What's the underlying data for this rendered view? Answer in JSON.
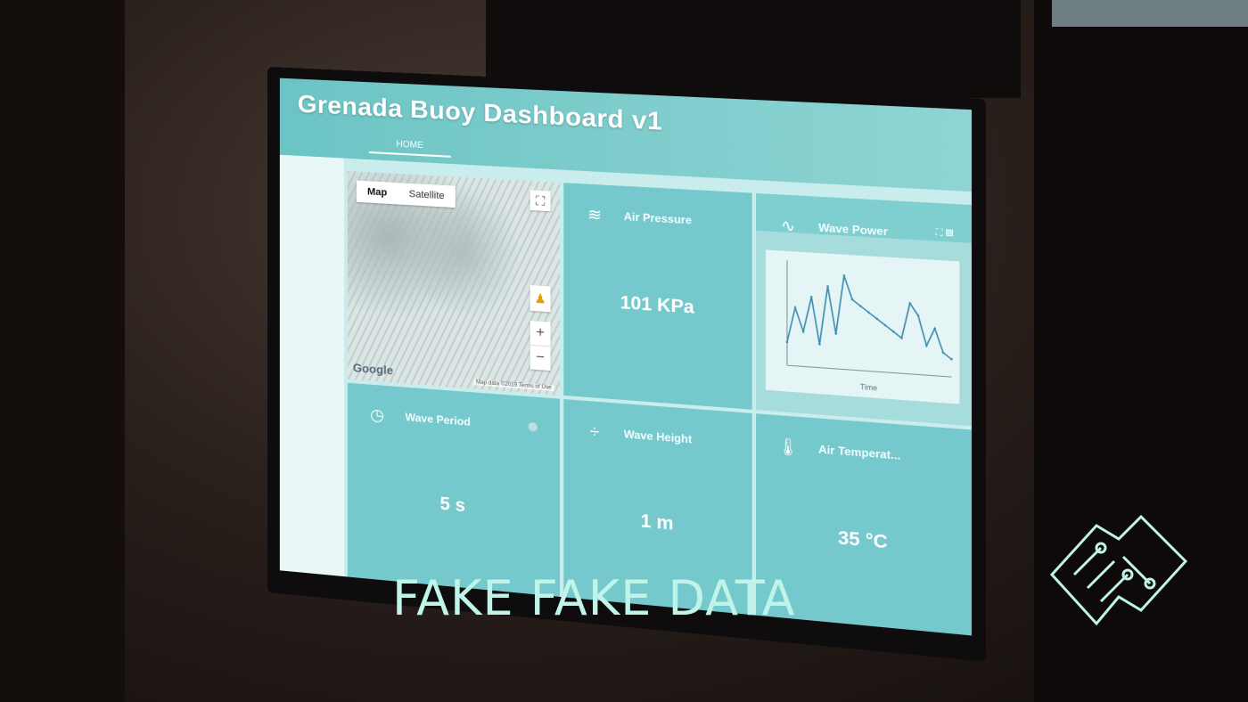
{
  "app": {
    "title": "Grenada Buoy Dashboard v1",
    "nav_home": "HOME"
  },
  "map": {
    "tabs": [
      "Map",
      "Satellite"
    ],
    "active_tab": "Map",
    "logo": "Google",
    "attribution": "Map data ©2019  Terms of Use",
    "zoom_in": "+",
    "zoom_out": "−",
    "fullscreen_icon": "fullscreen-icon",
    "pegman_icon": "pegman-icon"
  },
  "cards": {
    "air_pressure": {
      "label": "Air Pressure",
      "value": "101 KPa",
      "icon": "wind-icon"
    },
    "wave_power": {
      "label": "Wave Power",
      "icon": "sine-wave-icon"
    },
    "wave_period": {
      "label": "Wave Period",
      "value": "5 s",
      "icon": "clock-icon"
    },
    "wave_height": {
      "label": "Wave Height",
      "value": "1 m",
      "icon": "height-icon"
    },
    "air_temperature": {
      "label": "Air Temperat...",
      "value": "35 °C",
      "icon": "thermometer-icon"
    }
  },
  "chart_data": {
    "type": "line",
    "title": "",
    "xlabel": "Time",
    "ylabel": "",
    "x": [
      0,
      1,
      2,
      3,
      4,
      5,
      6,
      7,
      8,
      9,
      10,
      11,
      12,
      13,
      14,
      15,
      16,
      17,
      18,
      19,
      20
    ],
    "series": [
      {
        "values": [
          2,
          5,
          3,
          6,
          2,
          7,
          3,
          8,
          6,
          5.5,
          5,
          4.5,
          4,
          3.5,
          3,
          6,
          5,
          2.5,
          4,
          2,
          1.5
        ]
      }
    ],
    "ylim": [
      0,
      9
    ],
    "grid": false
  },
  "caption": "FAKE FAKE DATA",
  "colors": {
    "card": "#75c9cd",
    "header": "#6cc4c4",
    "caption": "#bff4ea"
  }
}
